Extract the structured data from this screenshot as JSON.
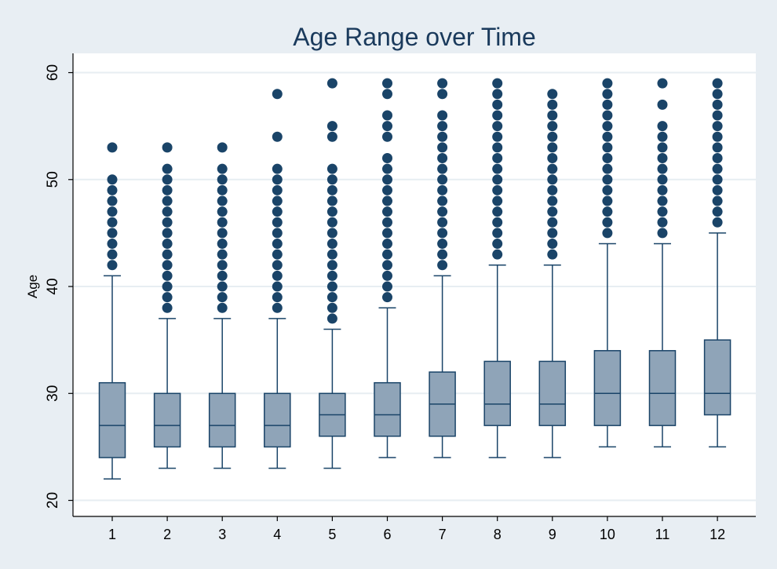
{
  "colors": {
    "page_background": "#e8eef3",
    "plot_background": "#ffffff",
    "box_fill": "#8fa4b8",
    "box_stroke": "#1a4468",
    "outlier": "#1a4468",
    "grid": "#e7eef2",
    "title": "#1a3a5c",
    "axis": "#000000"
  },
  "chart_data": {
    "type": "boxplot",
    "title": "Age Range over Time",
    "xlabel": "",
    "ylabel": "Age",
    "ylim": [
      18.5,
      61.8
    ],
    "yticks": [
      20,
      30,
      40,
      50,
      60
    ],
    "grid": true,
    "categories": [
      "1",
      "2",
      "3",
      "4",
      "5",
      "6",
      "7",
      "8",
      "9",
      "10",
      "11",
      "12"
    ],
    "boxes": [
      {
        "label": "1",
        "whisker_low": 22,
        "q1": 24,
        "median": 27,
        "q3": 31,
        "whisker_high": 41,
        "outliers": [
          42,
          43,
          44,
          45,
          46,
          47,
          48,
          49,
          50,
          53
        ]
      },
      {
        "label": "2",
        "whisker_low": 23,
        "q1": 25,
        "median": 27,
        "q3": 30,
        "whisker_high": 37,
        "outliers": [
          38,
          39,
          40,
          41,
          42,
          43,
          44,
          45,
          46,
          47,
          48,
          49,
          50,
          51,
          53
        ]
      },
      {
        "label": "3",
        "whisker_low": 23,
        "q1": 25,
        "median": 27,
        "q3": 30,
        "whisker_high": 37,
        "outliers": [
          38,
          39,
          40,
          41,
          42,
          43,
          44,
          45,
          46,
          47,
          48,
          49,
          50,
          51,
          53
        ]
      },
      {
        "label": "4",
        "whisker_low": 23,
        "q1": 25,
        "median": 27,
        "q3": 30,
        "whisker_high": 37,
        "outliers": [
          38,
          39,
          40,
          41,
          42,
          43,
          44,
          45,
          46,
          47,
          48,
          49,
          50,
          51,
          54,
          58
        ]
      },
      {
        "label": "5",
        "whisker_low": 23,
        "q1": 26,
        "median": 28,
        "q3": 30,
        "whisker_high": 36,
        "outliers": [
          37,
          38,
          39,
          40,
          41,
          42,
          43,
          44,
          45,
          46,
          47,
          48,
          49,
          50,
          51,
          54,
          55,
          59
        ]
      },
      {
        "label": "6",
        "whisker_low": 24,
        "q1": 26,
        "median": 28,
        "q3": 31,
        "whisker_high": 38,
        "outliers": [
          39,
          40,
          41,
          42,
          43,
          44,
          45,
          46,
          47,
          48,
          49,
          50,
          51,
          52,
          54,
          55,
          56,
          58,
          59
        ]
      },
      {
        "label": "7",
        "whisker_low": 24,
        "q1": 26,
        "median": 29,
        "q3": 32,
        "whisker_high": 41,
        "outliers": [
          42,
          43,
          44,
          45,
          46,
          47,
          48,
          49,
          50,
          51,
          52,
          53,
          54,
          55,
          56,
          58,
          59
        ]
      },
      {
        "label": "8",
        "whisker_low": 24,
        "q1": 27,
        "median": 29,
        "q3": 33,
        "whisker_high": 42,
        "outliers": [
          43,
          44,
          45,
          46,
          47,
          48,
          49,
          50,
          51,
          52,
          53,
          54,
          55,
          56,
          57,
          58,
          59
        ]
      },
      {
        "label": "9",
        "whisker_low": 24,
        "q1": 27,
        "median": 29,
        "q3": 33,
        "whisker_high": 42,
        "outliers": [
          43,
          44,
          45,
          46,
          47,
          48,
          49,
          50,
          51,
          52,
          53,
          54,
          55,
          56,
          57,
          58
        ]
      },
      {
        "label": "10",
        "whisker_low": 25,
        "q1": 27,
        "median": 30,
        "q3": 34,
        "whisker_high": 44,
        "outliers": [
          45,
          46,
          47,
          48,
          49,
          50,
          51,
          52,
          53,
          54,
          55,
          56,
          57,
          58,
          59
        ]
      },
      {
        "label": "11",
        "whisker_low": 25,
        "q1": 27,
        "median": 30,
        "q3": 34,
        "whisker_high": 44,
        "outliers": [
          45,
          46,
          47,
          48,
          49,
          50,
          51,
          52,
          53,
          54,
          55,
          57,
          59
        ]
      },
      {
        "label": "12",
        "whisker_low": 25,
        "q1": 28,
        "median": 30,
        "q3": 35,
        "whisker_high": 45,
        "outliers": [
          46,
          47,
          48,
          49,
          50,
          51,
          52,
          53,
          54,
          55,
          56,
          57,
          58,
          59
        ]
      }
    ]
  }
}
